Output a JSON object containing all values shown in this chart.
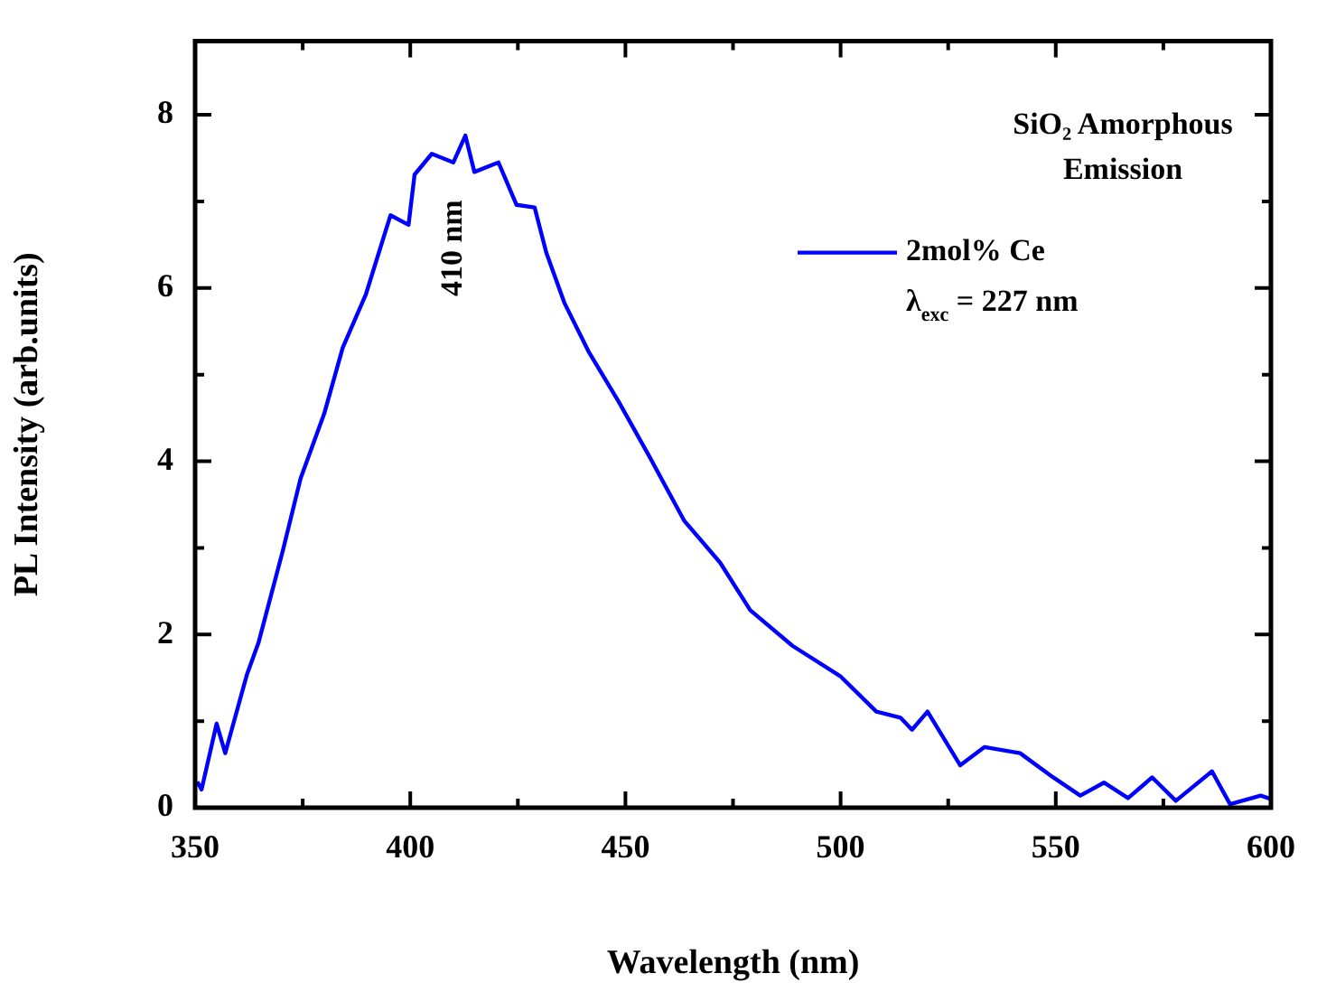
{
  "chart_data": {
    "type": "line",
    "xlabel": "Wavelength (nm)",
    "ylabel": "PL Intensity (arb.units)",
    "legend_title": "SiO₂ Amorphous Emission",
    "legend": "top right",
    "xlim": [
      350,
      600
    ],
    "xticks": [
      350,
      {
        "value": 375,
        "label": null
      },
      400,
      {
        "value": 425,
        "label": null
      },
      450,
      {
        "value": 475,
        "label": null
      },
      500,
      {
        "value": 525,
        "label": null
      },
      550,
      {
        "value": 575,
        "label": null
      },
      600
    ],
    "ylim": [
      0,
      8.85
    ],
    "yticks": [
      0,
      {
        "value": 1,
        "label": null
      },
      2,
      {
        "value": 3,
        "label": null
      },
      4,
      {
        "value": 5,
        "label": null
      },
      6,
      {
        "value": 7,
        "label": null
      },
      8
    ],
    "annotations": [
      "410 nm",
      "λ$_{exc}$ = 227 nm"
    ],
    "series": [
      {
        "name": "2mol% Ce",
        "color": "#0000ff",
        "x": [
          350.5,
          351.5,
          355,
          357,
          362,
          364.7,
          370.4,
          374.5,
          380,
          384.3,
          389.7,
          395.4,
          399.6,
          401,
          405,
          410,
          412.8,
          414.9,
          420.5,
          424.7,
          428.9,
          431.6,
          435.8,
          441.4,
          448.4,
          455.4,
          463.7,
          472,
          479,
          488.8,
          499.9,
          508.3,
          513.9,
          516.6,
          520.2,
          527.8,
          533.4,
          541.7,
          549.4,
          555.7,
          561.2,
          566.8,
          572.4,
          577.9,
          586.3,
          590.5,
          597.6,
          600
        ],
        "values": [
          0.3,
          0.21,
          0.97,
          0.63,
          1.53,
          1.9,
          2.97,
          3.8,
          4.55,
          5.31,
          5.93,
          6.84,
          6.73,
          7.31,
          7.55,
          7.45,
          7.76,
          7.34,
          7.45,
          6.96,
          6.93,
          6.41,
          5.83,
          5.27,
          4.69,
          4.07,
          3.31,
          2.83,
          2.28,
          1.87,
          1.52,
          1.11,
          1.04,
          0.9,
          1.11,
          0.49,
          0.7,
          0.63,
          0.35,
          0.14,
          0.29,
          0.11,
          0.35,
          0.08,
          0.42,
          0.04,
          0.14,
          0.1
        ]
      }
    ]
  }
}
